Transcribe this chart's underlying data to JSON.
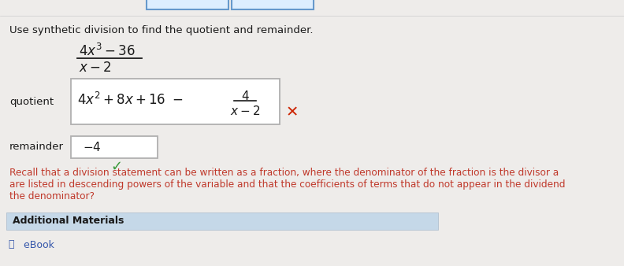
{
  "title": "Use synthetic division to find the quotient and remainder.",
  "problem_numerator": "$4x^3 - 36$",
  "problem_denominator": "$x - 2$",
  "quotient_label": "quotient",
  "remainder_label": "remainder",
  "remainder_box_text": "$-4$",
  "recall_line1": "Recall that a division statement can be written as a fraction, where the denominator of the fraction is the divisor a",
  "recall_line2": "are listed in descending powers of the variable and that the coefficients of terms that do not appear in the dividend",
  "recall_line3": "the denominator?",
  "additional_label": "Additional Materials",
  "ebook_label": " eBook",
  "bg_color": "#eeecea",
  "content_bg": "#f5f3f0",
  "box_color": "#ffffff",
  "box_edge_color": "#b0b0b0",
  "text_color": "#1a1a1a",
  "red_text_color": "#c0392b",
  "green_check_color": "#3a9a3a",
  "red_x_color": "#cc2200",
  "additional_bg": "#c5d8e8",
  "tab_color": "#ddeeff",
  "tab_edge_color": "#6699cc"
}
